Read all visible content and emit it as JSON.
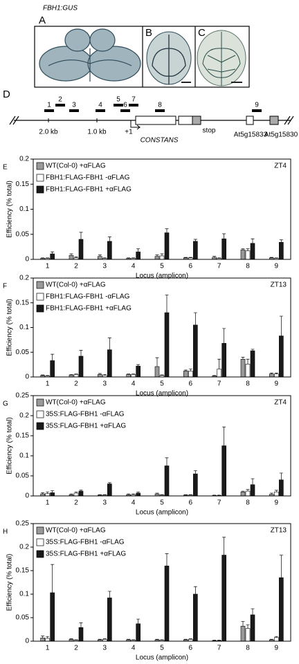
{
  "photos": {
    "title": "FBH1:GUS",
    "labels": [
      "A",
      "B",
      "C"
    ]
  },
  "diagram": {
    "label": "D",
    "amplicons": [
      "1",
      "2",
      "3",
      "4",
      "5",
      "6",
      "7",
      "8",
      "9"
    ],
    "labels": [
      "2.0 kb",
      "1.0 kb",
      "+1",
      "CONSTANS",
      "stop",
      "At5g15833",
      "At5g15830"
    ]
  },
  "chart_data": [
    {
      "type": "bar",
      "panel": "E",
      "tag": "ZT4",
      "x_label": "Locus (amplicon)",
      "y_label": "Efficiency (% total)",
      "categories": [
        "1",
        "2",
        "3",
        "4",
        "5",
        "6",
        "7",
        "8",
        "9"
      ],
      "series": [
        {
          "name": "WT(Col-0) +αFLAG",
          "color": "#999999",
          "values": [
            0.002,
            0.008,
            0.006,
            0.002,
            0.006,
            0.003,
            0.004,
            0.019,
            0.003
          ],
          "errors": [
            0.001,
            0.003,
            0.003,
            0.001,
            0.003,
            0.001,
            0.002,
            0.002,
            0.001
          ]
        },
        {
          "name": "FBH1:FLAG-FBH1 -αFLAG",
          "color": "#ffffff",
          "values": [
            0.002,
            0.003,
            0.002,
            0.002,
            0.007,
            0.003,
            0.002,
            0.017,
            0.002
          ],
          "errors": [
            0.001,
            0.002,
            0.001,
            0.001,
            0.004,
            0.001,
            0.001,
            0.004,
            0.001
          ]
        },
        {
          "name": "FBH1:FLAG-FBH1 +αFLAG",
          "color": "#1a1a1a",
          "values": [
            0.011,
            0.04,
            0.036,
            0.015,
            0.053,
            0.036,
            0.041,
            0.032,
            0.034
          ],
          "errors": [
            0.004,
            0.014,
            0.009,
            0.006,
            0.008,
            0.004,
            0.01,
            0.009,
            0.005
          ]
        }
      ],
      "ylim": [
        0,
        0.2
      ],
      "yticks": [
        0,
        0.05,
        0.1,
        0.15,
        0.2
      ]
    },
    {
      "type": "bar",
      "panel": "F",
      "tag": "ZT13",
      "x_label": "Locus (amplicon)",
      "y_label": "Efficiency (% total)",
      "categories": [
        "1",
        "2",
        "3",
        "4",
        "5",
        "6",
        "7",
        "8",
        "9"
      ],
      "series": [
        {
          "name": "WT(Col-0) +αFLAG",
          "color": "#999999",
          "values": [
            0.003,
            0.004,
            0.005,
            0.005,
            0.021,
            0.012,
            0.002,
            0.036,
            0.006
          ],
          "errors": [
            0.001,
            0.001,
            0.002,
            0.001,
            0.018,
            0.002,
            0.001,
            0.004,
            0.002
          ]
        },
        {
          "name": "FBH1:FLAG-FBH1 -αFLAG",
          "color": "#ffffff",
          "values": [
            0.002,
            0.005,
            0.003,
            0.005,
            0.003,
            0.012,
            0.016,
            0.026,
            0.006
          ],
          "errors": [
            0.001,
            0.001,
            0.002,
            0.001,
            0.001,
            0.004,
            0.02,
            0.01,
            0.002
          ]
        },
        {
          "name": "FBH1:FLAG-FBH1 +αFLAG",
          "color": "#1a1a1a",
          "values": [
            0.033,
            0.042,
            0.055,
            0.022,
            0.13,
            0.105,
            0.068,
            0.053,
            0.083
          ],
          "errors": [
            0.013,
            0.012,
            0.024,
            0.003,
            0.036,
            0.025,
            0.03,
            0.003,
            0.04
          ]
        }
      ],
      "ylim": [
        0,
        0.2
      ],
      "yticks": [
        0,
        0.05,
        0.1,
        0.15,
        0.2
      ]
    },
    {
      "type": "bar",
      "panel": "G",
      "tag": "ZT4",
      "x_label": "Locus (amplicon)",
      "y_label": "Efficiency (% total)",
      "categories": [
        "1",
        "2",
        "3",
        "4",
        "5",
        "6",
        "7",
        "8",
        "9"
      ],
      "series": [
        {
          "name": "WT(Col-0) +αFLAG",
          "color": "#999999",
          "values": [
            0.005,
            0.003,
            0.002,
            0.003,
            0.005,
            0.002,
            0.001,
            0.01,
            0.004
          ],
          "errors": [
            0.003,
            0.002,
            0.001,
            0.002,
            0.002,
            0.001,
            0.001,
            0.002,
            0.003
          ]
        },
        {
          "name": "35S:FLAG-FBH1 -αFLAG",
          "color": "#ffffff",
          "values": [
            0.006,
            0.007,
            0.002,
            0.003,
            0.002,
            0.002,
            0.001,
            0.012,
            0.01
          ],
          "errors": [
            0.004,
            0.003,
            0.001,
            0.002,
            0.001,
            0.001,
            0.001,
            0.004,
            0.004
          ]
        },
        {
          "name": "35S:FLAG-FBH1 +αFLAG",
          "color": "#1a1a1a",
          "values": [
            0.008,
            0.012,
            0.03,
            0.007,
            0.075,
            0.055,
            0.125,
            0.028,
            0.04
          ],
          "errors": [
            0.005,
            0.003,
            0.003,
            0.003,
            0.02,
            0.008,
            0.047,
            0.015,
            0.017
          ]
        }
      ],
      "ylim": [
        0,
        0.25
      ],
      "yticks": [
        0,
        0.05,
        0.1,
        0.15,
        0.2,
        0.25
      ]
    },
    {
      "type": "bar",
      "panel": "H",
      "tag": "ZT13",
      "x_label": "Locus (amplicon)",
      "y_label": "Efficiency (% total)",
      "categories": [
        "1",
        "2",
        "3",
        "4",
        "5",
        "6",
        "7",
        "8",
        "9"
      ],
      "series": [
        {
          "name": "WT(Col-0) +αFLAG",
          "color": "#999999",
          "values": [
            0.007,
            0.004,
            0.003,
            0.003,
            0.003,
            0.003,
            0.001,
            0.032,
            0.003
          ],
          "errors": [
            0.004,
            0.001,
            0.001,
            0.001,
            0.001,
            0.001,
            0.001,
            0.01,
            0.001
          ]
        },
        {
          "name": "35S:FLAG-FBH1 -αFLAG",
          "color": "#ffffff",
          "values": [
            0.006,
            0.002,
            0.004,
            0.002,
            0.002,
            0.004,
            0.001,
            0.027,
            0.008
          ],
          "errors": [
            0.004,
            0.001,
            0.001,
            0.001,
            0.001,
            0.001,
            0.001,
            0.008,
            0.002
          ]
        },
        {
          "name": "35S:FLAG-FBH1 +αFLAG",
          "color": "#1a1a1a",
          "values": [
            0.103,
            0.029,
            0.092,
            0.037,
            0.16,
            0.1,
            0.183,
            0.056,
            0.135
          ],
          "errors": [
            0.06,
            0.01,
            0.014,
            0.01,
            0.026,
            0.016,
            0.038,
            0.013,
            0.048
          ]
        }
      ],
      "ylim": [
        0,
        0.25
      ],
      "yticks": [
        0,
        0.05,
        0.1,
        0.15,
        0.2,
        0.25
      ]
    }
  ]
}
